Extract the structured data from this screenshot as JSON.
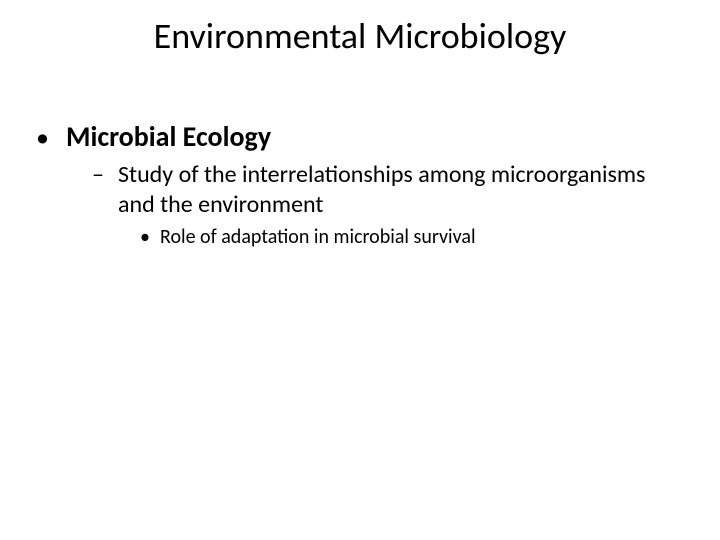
{
  "slide": {
    "title": "Environmental Microbiology",
    "bullets": {
      "level1": {
        "marker": "•",
        "text": "Microbial Ecology"
      },
      "level2": {
        "marker": "–",
        "text": "Study of the interrelationships among microorganisms and the environment"
      },
      "level3": {
        "marker": "•",
        "text": "Role of adaptation in microbial survival"
      }
    }
  },
  "style": {
    "background_color": "#ffffff",
    "text_color": "#000000",
    "title_fontsize": 36,
    "l1_fontsize": 28,
    "l1_fontweight": "bold",
    "l2_fontsize": 24,
    "l3_fontsize": 20,
    "font_family": "Calibri"
  }
}
